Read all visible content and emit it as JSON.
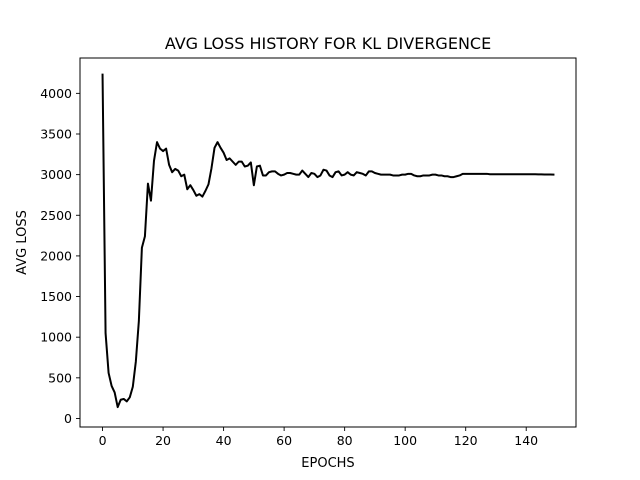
{
  "chart_data": {
    "type": "line",
    "title": "AVG LOSS HISTORY FOR KL DIVERGENCE",
    "xlabel": "EPOCHS",
    "ylabel": "AVG LOSS",
    "xlim": [
      -7.45,
      156.45
    ],
    "ylim": [
      -105,
      4435
    ],
    "xticks": [
      0,
      20,
      40,
      60,
      80,
      100,
      120,
      140
    ],
    "yticks": [
      0,
      500,
      1000,
      1500,
      2000,
      2500,
      3000,
      3500,
      4000
    ],
    "grid": false,
    "legend": "none",
    "line_color": "#000000",
    "series": [
      {
        "x": [
          0,
          1,
          2,
          3,
          4,
          5,
          6,
          7,
          8,
          9,
          10,
          11,
          12,
          13,
          14,
          15,
          16,
          17,
          18,
          19,
          20,
          21,
          22,
          23,
          24,
          25,
          26,
          27,
          28,
          29,
          30,
          31,
          32,
          33,
          34,
          35,
          36,
          37,
          38,
          39,
          40,
          41,
          42,
          43,
          44,
          45,
          46,
          47,
          48,
          49,
          50,
          51,
          52,
          53,
          54,
          55,
          56,
          57,
          58,
          59,
          60,
          61,
          62,
          63,
          64,
          65,
          66,
          67,
          68,
          69,
          70,
          71,
          72,
          73,
          74,
          75,
          76,
          77,
          78,
          79,
          80,
          81,
          82,
          83,
          84,
          85,
          86,
          87,
          88,
          89,
          90,
          91,
          92,
          93,
          94,
          95,
          96,
          97,
          98,
          99,
          100,
          101,
          102,
          103,
          104,
          105,
          106,
          107,
          108,
          109,
          110,
          111,
          112,
          113,
          114,
          115,
          116,
          117,
          118,
          119,
          120,
          121,
          122,
          123,
          124,
          125,
          126,
          127,
          128,
          129,
          130,
          131,
          132,
          133,
          134,
          135,
          136,
          137,
          138,
          139,
          140,
          141,
          142,
          143,
          144,
          145,
          146,
          147,
          148,
          149
        ],
        "y": [
          4230,
          1050,
          560,
          400,
          320,
          140,
          230,
          240,
          210,
          260,
          390,
          700,
          1200,
          2100,
          2240,
          2890,
          2680,
          3170,
          3400,
          3320,
          3290,
          3320,
          3120,
          3030,
          3070,
          3050,
          2980,
          3000,
          2820,
          2870,
          2810,
          2740,
          2760,
          2730,
          2800,
          2880,
          3080,
          3330,
          3400,
          3330,
          3270,
          3180,
          3200,
          3160,
          3120,
          3160,
          3160,
          3100,
          3110,
          3150,
          2870,
          3100,
          3110,
          2990,
          2990,
          3030,
          3040,
          3040,
          3010,
          2990,
          3000,
          3020,
          3020,
          3010,
          3000,
          3000,
          3050,
          3010,
          2970,
          3020,
          3010,
          2970,
          2990,
          3060,
          3050,
          2990,
          2970,
          3030,
          3040,
          2990,
          3000,
          3030,
          3000,
          2990,
          3030,
          3020,
          3010,
          2990,
          3040,
          3040,
          3020,
          3010,
          3000,
          3000,
          3000,
          3000,
          2990,
          2990,
          2990,
          3000,
          3000,
          3010,
          3010,
          2990,
          2980,
          2980,
          2990,
          2990,
          2990,
          3000,
          3000,
          2990,
          2990,
          2980,
          2980,
          2970,
          2970,
          2980,
          2990,
          3010,
          3010,
          3010,
          3010,
          3010,
          3010,
          3010,
          3010,
          3010,
          3005,
          3005,
          3005,
          3005,
          3005,
          3005,
          3005,
          3005,
          3005,
          3005,
          3005,
          3005,
          3005,
          3005,
          3004,
          3004,
          3003,
          3003,
          3002,
          3002,
          3001,
          3000
        ]
      }
    ]
  }
}
